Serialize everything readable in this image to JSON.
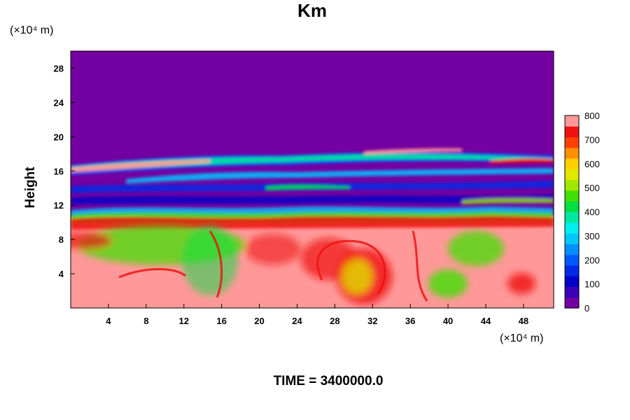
{
  "chart_data": {
    "type": "heatmap",
    "title": "Km",
    "ylabel": "Height",
    "x_unit": "(×10⁴ m)",
    "y_unit": "(×10⁴ m)",
    "xlim": [
      0,
      51.2
    ],
    "ylim": [
      0,
      30
    ],
    "x_ticks": [
      4,
      8,
      12,
      16,
      20,
      24,
      28,
      32,
      36,
      40,
      44,
      48
    ],
    "y_ticks": [
      4,
      8,
      12,
      16,
      20,
      24,
      28
    ],
    "colorbar": {
      "min": 0,
      "max": 800,
      "step": 50,
      "tick_values": [
        0,
        100,
        200,
        300,
        400,
        500,
        600,
        700,
        800
      ],
      "colors": [
        "#7300a0",
        "#3c00b8",
        "#0000c8",
        "#0028e6",
        "#0058ff",
        "#0090ff",
        "#00c8ff",
        "#00f0f0",
        "#00e8a0",
        "#00e040",
        "#40e000",
        "#a0e800",
        "#e0e800",
        "#ffd000",
        "#ff9000",
        "#ff4000",
        "#f01010",
        "#ff9898"
      ]
    },
    "footer": "TIME = 3400000.0"
  }
}
